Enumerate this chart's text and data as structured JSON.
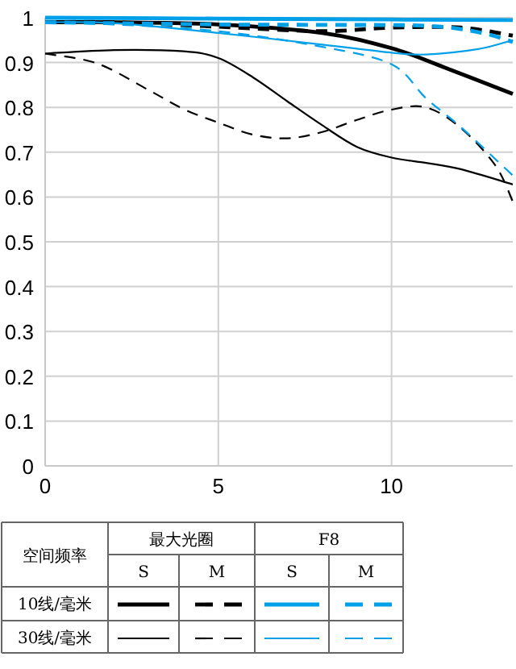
{
  "chart_data": {
    "type": "line",
    "legend_title": "空间频率",
    "grid": true,
    "xlim": [
      0,
      13.5
    ],
    "ylim": [
      0,
      1
    ],
    "xticks": [
      0,
      5,
      10
    ],
    "yticks": [
      0,
      0.1,
      0.2,
      0.3,
      0.4,
      0.5,
      0.6,
      0.7,
      0.8,
      0.9,
      1
    ],
    "annotations": [
      "最大光圈",
      "F8",
      "S",
      "M",
      "S",
      "M",
      "10线/毫米",
      "30线/毫米"
    ],
    "series": [
      {
        "color": "#000000",
        "line_style": "solid",
        "x": [
          0,
          2,
          5,
          8,
          10,
          11.5,
          13.5
        ],
        "values": [
          0.99,
          0.99,
          0.985,
          0.966,
          0.932,
          0.89,
          0.83
        ]
      },
      {
        "color": "#000000",
        "line_style": "dashed",
        "x": [
          0,
          2,
          5,
          8,
          10,
          12,
          13.5
        ],
        "values": [
          0.99,
          0.99,
          0.98,
          0.97,
          0.978,
          0.978,
          0.96
        ]
      },
      {
        "color": "#00a0e9",
        "line_style": "solid",
        "x": [
          0,
          5,
          10,
          13.5
        ],
        "values": [
          1.0,
          0.998,
          0.996,
          0.995
        ]
      },
      {
        "color": "#00a0e9",
        "line_style": "dashed",
        "x": [
          0,
          5,
          8,
          11,
          12.5,
          13.5
        ],
        "values": [
          0.99,
          0.985,
          0.984,
          0.982,
          0.968,
          0.946
        ]
      },
      {
        "color": "#000000",
        "line_style": "solid",
        "x": [
          0,
          2,
          4,
          5,
          6,
          7,
          8,
          9,
          10,
          11,
          12,
          13.5
        ],
        "values": [
          0.92,
          0.928,
          0.925,
          0.91,
          0.867,
          0.813,
          0.76,
          0.712,
          0.688,
          0.676,
          0.662,
          0.628
        ]
      },
      {
        "color": "#000000",
        "line_style": "dashed",
        "x": [
          0,
          1.5,
          3,
          4,
          5,
          6,
          7,
          8,
          9,
          10,
          11,
          12,
          13,
          13.5
        ],
        "values": [
          0.92,
          0.898,
          0.838,
          0.796,
          0.766,
          0.739,
          0.731,
          0.745,
          0.772,
          0.795,
          0.8,
          0.754,
          0.67,
          0.59
        ]
      },
      {
        "color": "#00a0e9",
        "line_style": "solid",
        "x": [
          0,
          2,
          5,
          8,
          10,
          11,
          12.5,
          13.5
        ],
        "values": [
          0.99,
          0.988,
          0.966,
          0.94,
          0.922,
          0.918,
          0.93,
          0.95
        ]
      },
      {
        "color": "#00a0e9",
        "line_style": "dashed",
        "x": [
          0,
          2,
          5,
          8,
          10,
          11,
          12,
          13.5
        ],
        "values": [
          0.99,
          0.985,
          0.97,
          0.935,
          0.896,
          0.82,
          0.756,
          0.648
        ]
      }
    ]
  }
}
